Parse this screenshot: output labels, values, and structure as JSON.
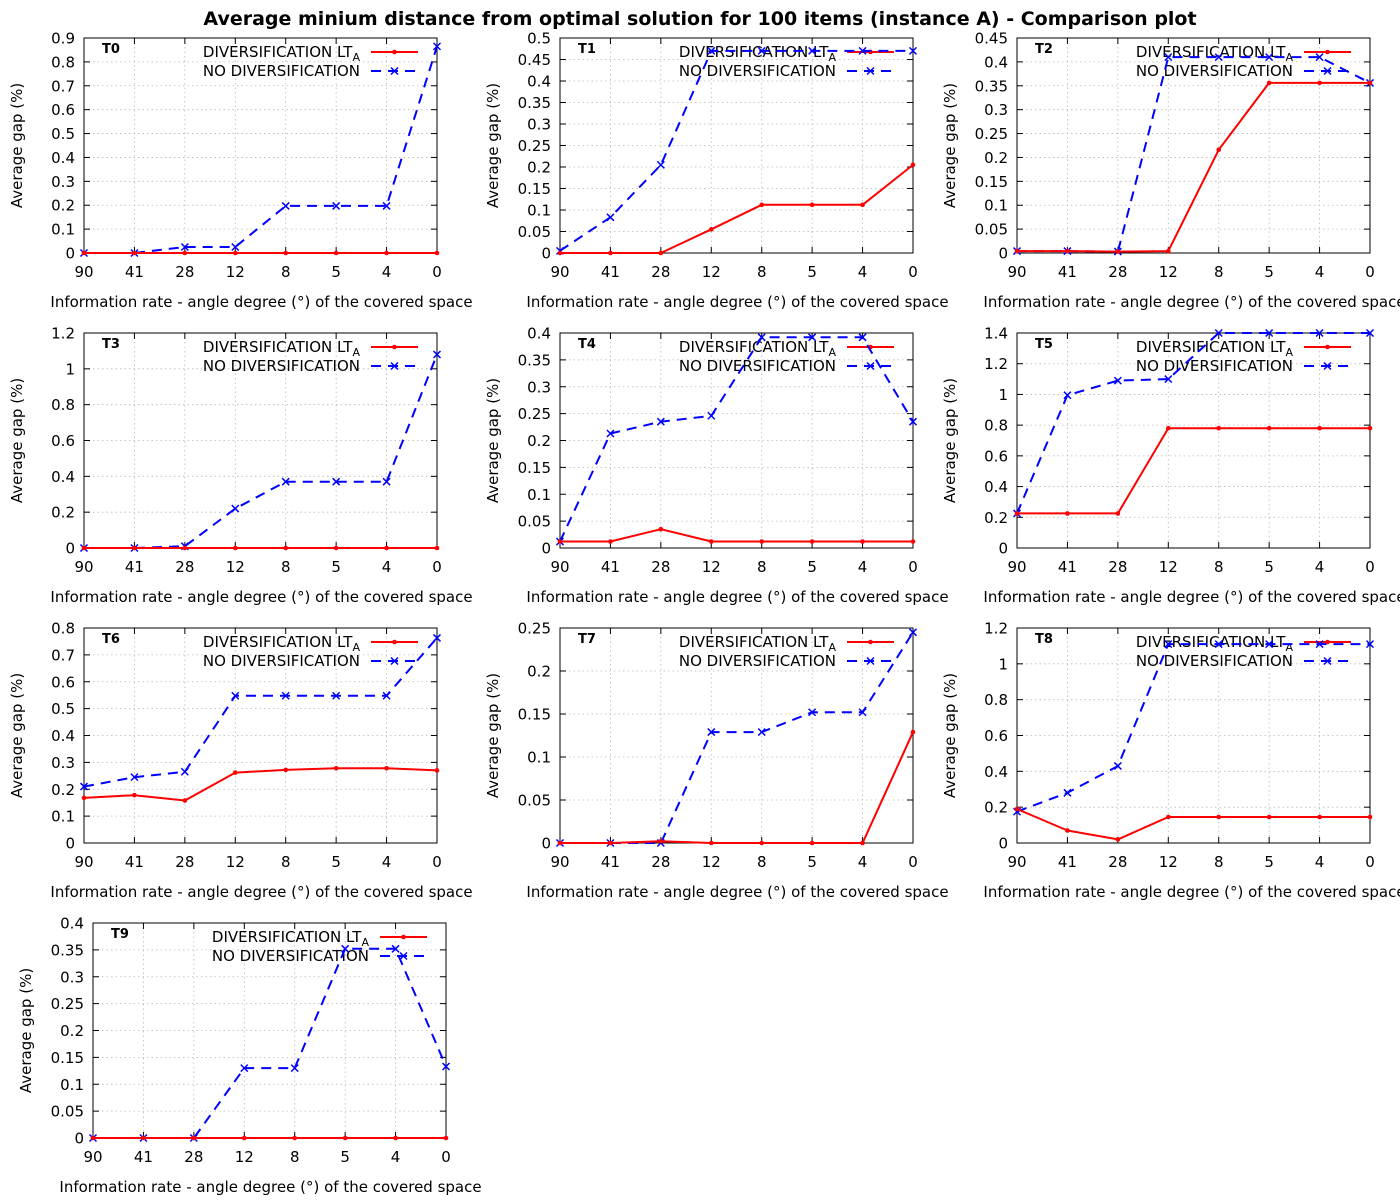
{
  "title": "Average minium distance from optimal solution for 100 items (instance A)  - Comparison plot",
  "chart_data": [
    {
      "type": "line",
      "panel_label": "T0",
      "categories": [
        "90",
        "41",
        "28",
        "12",
        "8",
        "5",
        "4",
        "0"
      ],
      "xlabel": "Information rate - angle degree (°)  of the covered space",
      "ylabel": "Average gap (%)",
      "ylim": [
        0,
        0.9
      ],
      "yticks": [
        "0",
        "0.1",
        "0.2",
        "0.3",
        "0.4",
        "0.5",
        "0.6",
        "0.7",
        "0.8",
        "0.9"
      ],
      "grid": true,
      "legend_position": "top-right",
      "series": [
        {
          "name": "DIVERSIFICATION LT",
          "name_subscript": "A",
          "color": "#ff0000",
          "style": "solid",
          "values": [
            0,
            0,
            0,
            0,
            0,
            0,
            0,
            0
          ]
        },
        {
          "name": "NO DIVERSIFICATION",
          "color": "#0000ff",
          "style": "dashed",
          "values": [
            0,
            0,
            0.025,
            0.025,
            0.197,
            0.197,
            0.197,
            0.865
          ]
        }
      ]
    },
    {
      "type": "line",
      "panel_label": "T1",
      "categories": [
        "90",
        "41",
        "28",
        "12",
        "8",
        "5",
        "4",
        "0"
      ],
      "xlabel": "Information rate - angle degree (°)  of the covered space",
      "ylabel": "Average gap (%)",
      "ylim": [
        0,
        0.5
      ],
      "yticks": [
        "0",
        "0.05",
        "0.1",
        "0.15",
        "0.2",
        "0.25",
        "0.3",
        "0.35",
        "0.4",
        "0.45",
        "0.5"
      ],
      "grid": true,
      "legend_position": "top-right",
      "series": [
        {
          "name": "DIVERSIFICATION LT",
          "name_subscript": "A",
          "color": "#ff0000",
          "style": "solid",
          "values": [
            0,
            0,
            0,
            0.055,
            0.112,
            0.112,
            0.112,
            0.205
          ]
        },
        {
          "name": "NO DIVERSIFICATION",
          "color": "#0000ff",
          "style": "dashed",
          "values": [
            0.005,
            0.083,
            0.205,
            0.47,
            0.47,
            0.47,
            0.47,
            0.47
          ]
        }
      ]
    },
    {
      "type": "line",
      "panel_label": "T2",
      "categories": [
        "90",
        "41",
        "28",
        "12",
        "8",
        "5",
        "4",
        "0"
      ],
      "xlabel": "Information rate - angle degree (°)  of the covered space",
      "ylabel": "Average gap (%)",
      "ylim": [
        0,
        0.45
      ],
      "yticks": [
        "0",
        "0.05",
        "0.1",
        "0.15",
        "0.2",
        "0.25",
        "0.3",
        "0.35",
        "0.4",
        "0.45"
      ],
      "grid": true,
      "legend_position": "top-right",
      "series": [
        {
          "name": "DIVERSIFICATION LT",
          "name_subscript": "A",
          "color": "#ff0000",
          "style": "solid",
          "values": [
            0.004,
            0.004,
            0.003,
            0.004,
            0.216,
            0.356,
            0.356,
            0.356
          ]
        },
        {
          "name": "NO DIVERSIFICATION",
          "color": "#0000ff",
          "style": "dashed",
          "values": [
            0.004,
            0.004,
            0.003,
            0.41,
            0.41,
            0.41,
            0.41,
            0.356
          ]
        }
      ]
    },
    {
      "type": "line",
      "panel_label": "T3",
      "categories": [
        "90",
        "41",
        "28",
        "12",
        "8",
        "5",
        "4",
        "0"
      ],
      "xlabel": "Information rate - angle degree (°)  of the covered space",
      "ylabel": "Average gap (%)",
      "ylim": [
        0,
        1.2
      ],
      "yticks": [
        "0",
        "0.2",
        "0.4",
        "0.6",
        "0.8",
        "1",
        "1.2"
      ],
      "grid": true,
      "legend_position": "top-right",
      "series": [
        {
          "name": "DIVERSIFICATION LT",
          "name_subscript": "A",
          "color": "#ff0000",
          "style": "solid",
          "values": [
            0,
            0,
            0,
            0,
            0,
            0,
            0,
            0
          ]
        },
        {
          "name": "NO DIVERSIFICATION",
          "color": "#0000ff",
          "style": "dashed",
          "values": [
            0,
            0,
            0.01,
            0.22,
            0.37,
            0.37,
            0.37,
            1.08
          ]
        }
      ]
    },
    {
      "type": "line",
      "panel_label": "T4",
      "categories": [
        "90",
        "41",
        "28",
        "12",
        "8",
        "5",
        "4",
        "0"
      ],
      "xlabel": "Information rate - angle degree (°)  of the covered space",
      "ylabel": "Average gap (%)",
      "ylim": [
        0,
        0.4
      ],
      "yticks": [
        "0",
        "0.05",
        "0.1",
        "0.15",
        "0.2",
        "0.25",
        "0.3",
        "0.35",
        "0.4"
      ],
      "grid": true,
      "legend_position": "top-right",
      "series": [
        {
          "name": "DIVERSIFICATION LT",
          "name_subscript": "A",
          "color": "#ff0000",
          "style": "solid",
          "values": [
            0.012,
            0.012,
            0.035,
            0.012,
            0.012,
            0.012,
            0.012,
            0.012
          ]
        },
        {
          "name": "NO DIVERSIFICATION",
          "color": "#0000ff",
          "style": "dashed",
          "values": [
            0.012,
            0.213,
            0.235,
            0.246,
            0.392,
            0.392,
            0.392,
            0.235
          ]
        }
      ]
    },
    {
      "type": "line",
      "panel_label": "T5",
      "categories": [
        "90",
        "41",
        "28",
        "12",
        "8",
        "5",
        "4",
        "0"
      ],
      "xlabel": "Information rate - angle degree (°)  of the covered space",
      "ylabel": "Average gap (%)",
      "ylim": [
        0,
        1.4
      ],
      "yticks": [
        "0",
        "0.2",
        "0.4",
        "0.6",
        "0.8",
        "1",
        "1.2",
        "1.4"
      ],
      "grid": true,
      "legend_position": "top-right",
      "series": [
        {
          "name": "DIVERSIFICATION LT",
          "name_subscript": "A",
          "color": "#ff0000",
          "style": "solid",
          "values": [
            0.225,
            0.225,
            0.225,
            0.78,
            0.78,
            0.78,
            0.78,
            0.78
          ]
        },
        {
          "name": "NO DIVERSIFICATION",
          "color": "#0000ff",
          "style": "dashed",
          "values": [
            0.225,
            0.995,
            1.09,
            1.1,
            1.4,
            1.4,
            1.4,
            1.4
          ]
        }
      ]
    },
    {
      "type": "line",
      "panel_label": "T6",
      "categories": [
        "90",
        "41",
        "28",
        "12",
        "8",
        "5",
        "4",
        "0"
      ],
      "xlabel": "Information rate - angle degree (°)  of the covered space",
      "ylabel": "Average gap (%)",
      "ylim": [
        0,
        0.8
      ],
      "yticks": [
        "0",
        "0.1",
        "0.2",
        "0.3",
        "0.4",
        "0.5",
        "0.6",
        "0.7",
        "0.8"
      ],
      "grid": true,
      "legend_position": "top-right",
      "series": [
        {
          "name": "DIVERSIFICATION LT",
          "name_subscript": "A",
          "color": "#ff0000",
          "style": "solid",
          "values": [
            0.168,
            0.178,
            0.158,
            0.262,
            0.272,
            0.278,
            0.278,
            0.27
          ]
        },
        {
          "name": "NO DIVERSIFICATION",
          "color": "#0000ff",
          "style": "dashed",
          "values": [
            0.21,
            0.245,
            0.265,
            0.548,
            0.548,
            0.548,
            0.548,
            0.763
          ]
        }
      ]
    },
    {
      "type": "line",
      "panel_label": "T7",
      "categories": [
        "90",
        "41",
        "28",
        "12",
        "8",
        "5",
        "4",
        "0"
      ],
      "xlabel": "Information rate - angle degree (°)  of the covered space",
      "ylabel": "Average gap (%)",
      "ylim": [
        0,
        0.25
      ],
      "yticks": [
        "0",
        "0.05",
        "0.1",
        "0.15",
        "0.2",
        "0.25"
      ],
      "grid": true,
      "legend_position": "top-right",
      "series": [
        {
          "name": "DIVERSIFICATION LT",
          "name_subscript": "A",
          "color": "#ff0000",
          "style": "solid",
          "values": [
            0,
            0,
            0.002,
            0,
            0,
            0,
            0,
            0.129
          ]
        },
        {
          "name": "NO DIVERSIFICATION",
          "color": "#0000ff",
          "style": "dashed",
          "values": [
            0,
            0,
            0,
            0.129,
            0.129,
            0.152,
            0.152,
            0.245
          ]
        }
      ]
    },
    {
      "type": "line",
      "panel_label": "T8",
      "categories": [
        "90",
        "41",
        "28",
        "12",
        "8",
        "5",
        "4",
        "0"
      ],
      "xlabel": "Information rate - angle degree (°)  of the covered space",
      "ylabel": "Average gap (%)",
      "ylim": [
        0,
        1.2
      ],
      "yticks": [
        "0",
        "0.2",
        "0.4",
        "0.6",
        "0.8",
        "1",
        "1.2"
      ],
      "grid": true,
      "legend_position": "top-right",
      "series": [
        {
          "name": "DIVERSIFICATION LT",
          "name_subscript": "A",
          "color": "#ff0000",
          "style": "solid",
          "values": [
            0.19,
            0.07,
            0.02,
            0.145,
            0.145,
            0.145,
            0.145,
            0.145
          ]
        },
        {
          "name": "NO DIVERSIFICATION",
          "color": "#0000ff",
          "style": "dashed",
          "values": [
            0.175,
            0.28,
            0.43,
            1.11,
            1.11,
            1.11,
            1.11,
            1.11
          ]
        }
      ]
    },
    {
      "type": "line",
      "panel_label": "T9",
      "categories": [
        "90",
        "41",
        "28",
        "12",
        "8",
        "5",
        "4",
        "0"
      ],
      "xlabel": "Information rate - angle degree (°)  of the covered space",
      "ylabel": "Average gap (%)",
      "ylim": [
        0,
        0.4
      ],
      "yticks": [
        "0",
        "0.05",
        "0.1",
        "0.15",
        "0.2",
        "0.25",
        "0.3",
        "0.35",
        "0.4"
      ],
      "grid": true,
      "legend_position": "top-right",
      "series": [
        {
          "name": "DIVERSIFICATION LT",
          "name_subscript": "A",
          "color": "#ff0000",
          "style": "solid",
          "values": [
            0,
            0,
            0,
            0,
            0,
            0,
            0,
            0
          ]
        },
        {
          "name": "NO DIVERSIFICATION",
          "color": "#0000ff",
          "style": "dashed",
          "values": [
            0,
            0,
            0,
            0.13,
            0.13,
            0.352,
            0.352,
            0.133
          ]
        }
      ]
    }
  ]
}
